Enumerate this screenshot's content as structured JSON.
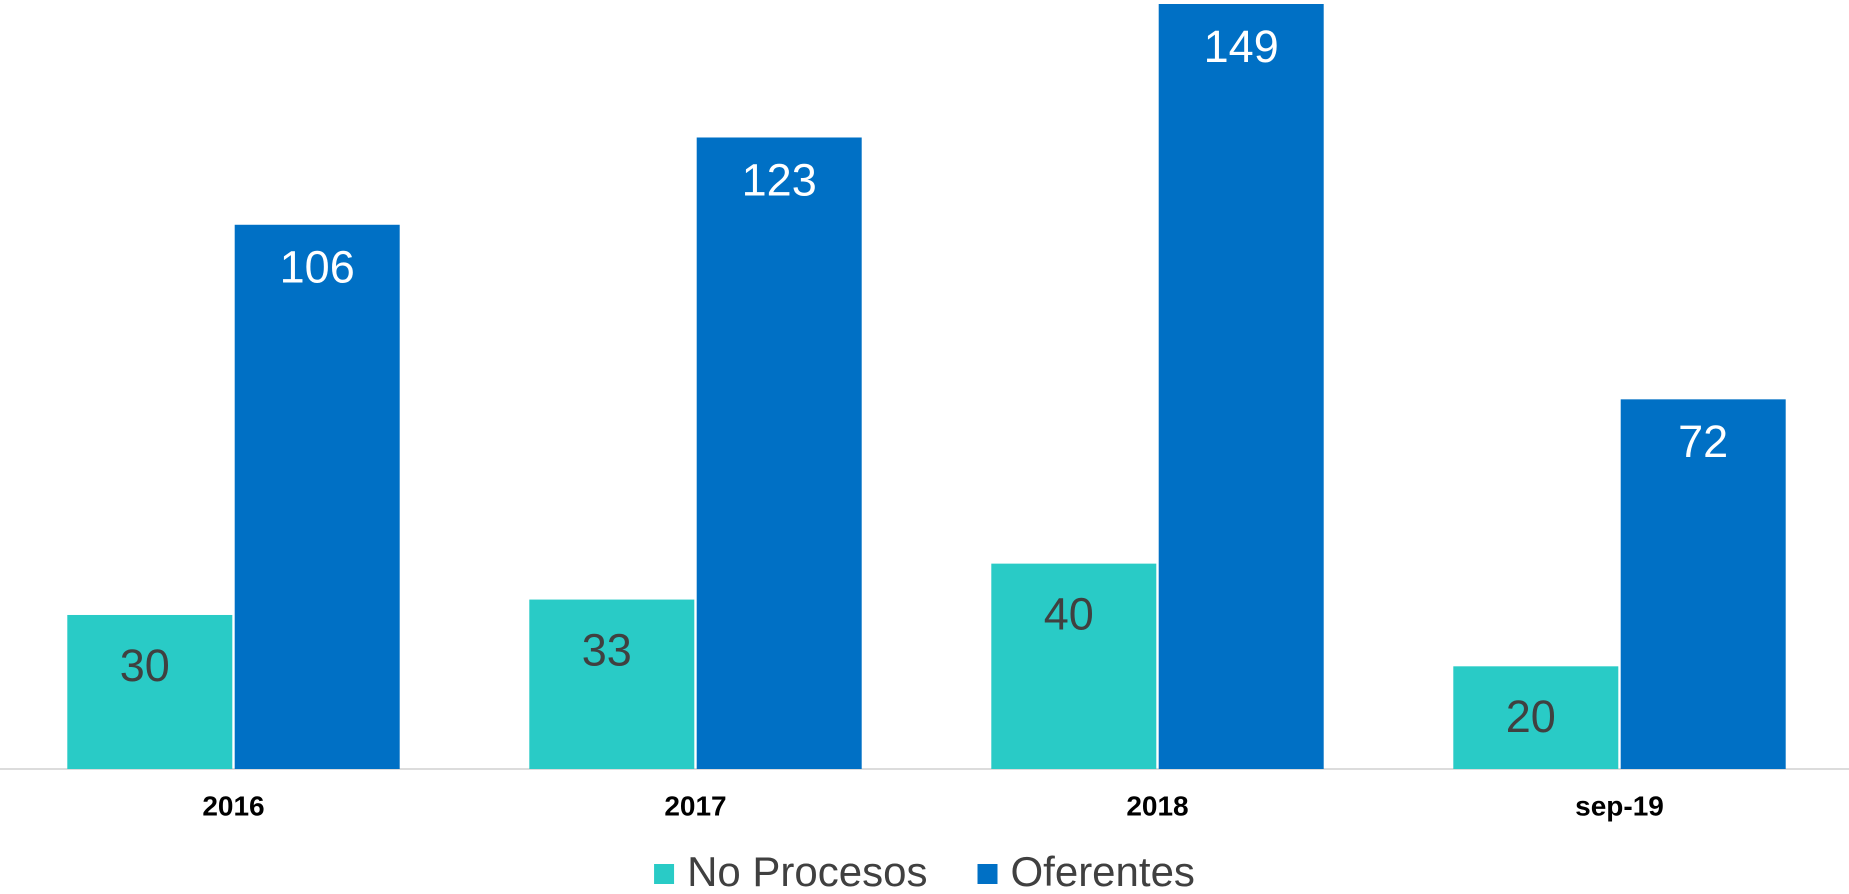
{
  "chart_data": {
    "type": "bar",
    "categories": [
      "2016",
      "2017",
      "2018",
      "sep-19"
    ],
    "series": [
      {
        "name": "No Procesos",
        "color": "#29cbc6",
        "label_color": "#404040",
        "values": [
          30,
          33,
          40,
          20
        ]
      },
      {
        "name": "Oferentes",
        "color": "#0070c5",
        "label_color": "#ffffff",
        "values": [
          106,
          123,
          149,
          72
        ]
      }
    ],
    "legend": "bottom"
  }
}
